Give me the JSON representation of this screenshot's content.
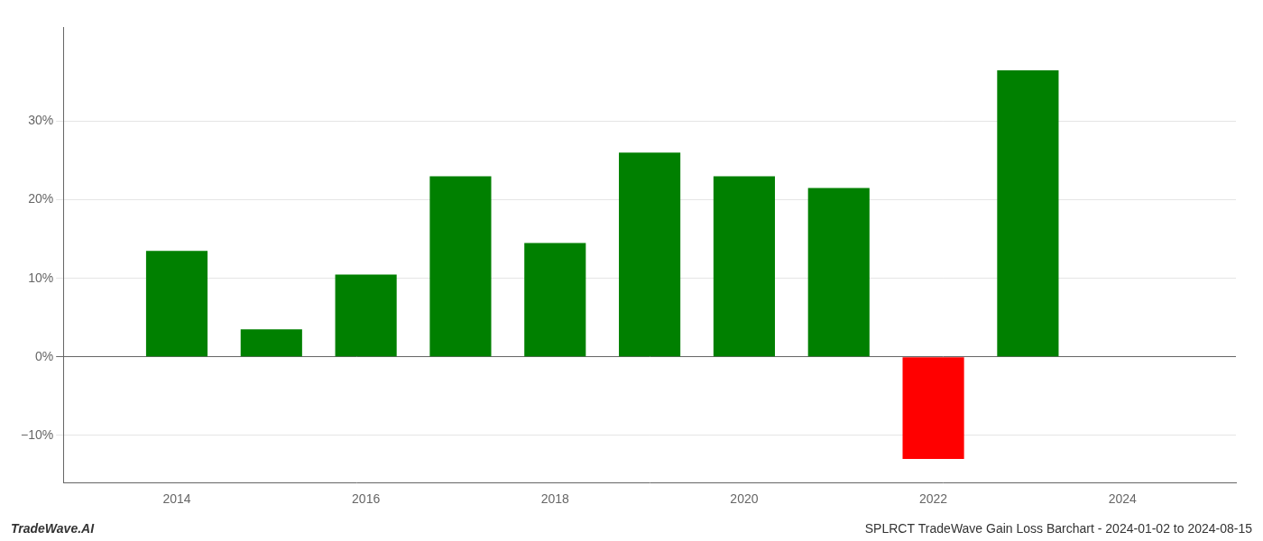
{
  "chart_data": {
    "type": "bar",
    "x": [
      2014,
      2015,
      2016,
      2017,
      2018,
      2019,
      2020,
      2021,
      2022,
      2023
    ],
    "values": [
      13.5,
      3.5,
      10.5,
      23.0,
      14.5,
      26.0,
      23.0,
      21.5,
      -13.0,
      36.5
    ],
    "colors": [
      "#008000",
      "#008000",
      "#008000",
      "#008000",
      "#008000",
      "#008000",
      "#008000",
      "#008000",
      "#ff0000",
      "#008000"
    ],
    "xlim": [
      2012.8,
      2025.2
    ],
    "xticks": [
      2014,
      2016,
      2018,
      2020,
      2022,
      2024
    ],
    "ylim": [
      -16,
      42
    ],
    "yticks": [
      {
        "value": -10,
        "label": "−10%"
      },
      {
        "value": 0,
        "label": "0%"
      },
      {
        "value": 10,
        "label": "10%"
      },
      {
        "value": 20,
        "label": "20%"
      },
      {
        "value": 30,
        "label": "30%"
      }
    ],
    "grid": true,
    "annotations": [
      "TradeWave.AI",
      "SPLRCT TradeWave Gain Loss Barchart - 2024-01-02 to 2024-08-15"
    ]
  }
}
